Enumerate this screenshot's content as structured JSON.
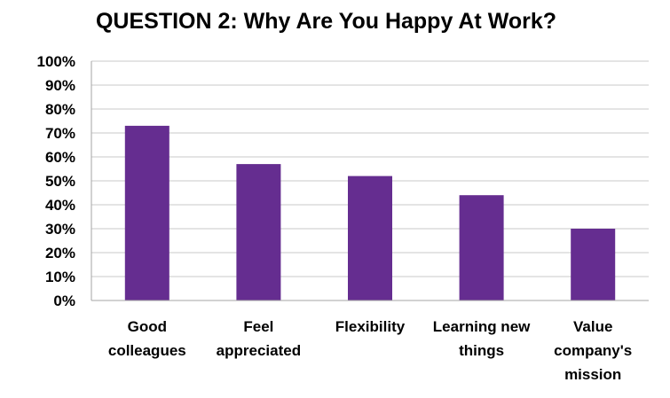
{
  "chart_data": {
    "type": "bar",
    "title": "QUESTION 2: Why Are You Happy At Work?",
    "xlabel": "",
    "ylabel": "",
    "categories": [
      [
        "Good",
        "colleagues"
      ],
      [
        "Feel",
        "appreciated"
      ],
      [
        "Flexibility"
      ],
      [
        "Learning new",
        "things"
      ],
      [
        "Value",
        "company's",
        "mission"
      ]
    ],
    "values": [
      0.73,
      0.57,
      0.52,
      0.44,
      0.3
    ],
    "ylim": [
      0,
      1
    ],
    "yticks": [
      "0%",
      "10%",
      "20%",
      "30%",
      "40%",
      "50%",
      "60%",
      "70%",
      "80%",
      "90%",
      "100%"
    ],
    "grid": true,
    "legend": "none",
    "colors": {
      "bar": "#652D90",
      "grid": "#C8C8C8",
      "axis": "#A6A6A6"
    }
  }
}
